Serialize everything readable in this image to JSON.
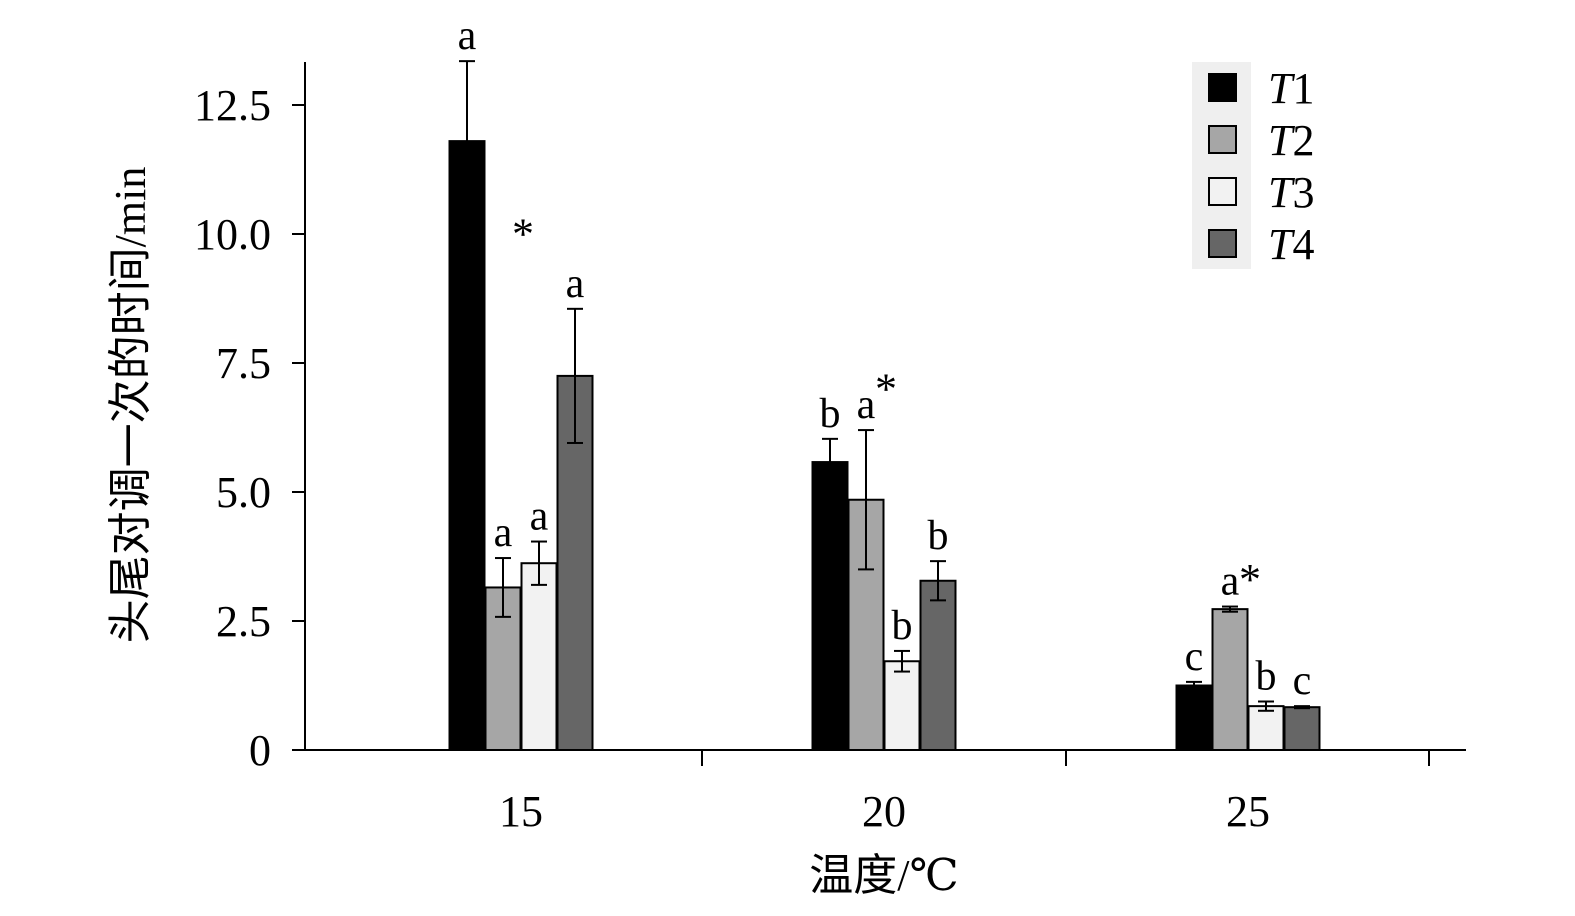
{
  "chart_data": {
    "type": "bar",
    "xlabel": "温度/℃",
    "ylabel": "头尾对调一次的时间/min",
    "categories": [
      "15",
      "20",
      "25"
    ],
    "ylim": [
      0,
      13.3
    ],
    "yticks": [
      {
        "value": 0,
        "label": "0"
      },
      {
        "value": 2.5,
        "label": "2.5"
      },
      {
        "value": 5.0,
        "label": "5.0"
      },
      {
        "value": 7.5,
        "label": "7.5"
      },
      {
        "value": 10.0,
        "label": "10.0"
      },
      {
        "value": 12.5,
        "label": "12.5"
      }
    ],
    "legend": {
      "position": "top-right"
    },
    "grid": false,
    "series": [
      {
        "name": "T1",
        "name_italic": "T",
        "name_rest": "1",
        "color": "#000000",
        "values": [
          11.8,
          5.58,
          1.25
        ],
        "errors": [
          1.55,
          0.45,
          0.07
        ],
        "labels": [
          "a",
          "b",
          "c"
        ]
      },
      {
        "name": "T2",
        "name_italic": "T",
        "name_rest": "2",
        "color": "#a6a6a6",
        "values": [
          3.15,
          4.85,
          2.73
        ],
        "errors": [
          0.57,
          1.35,
          0.05
        ],
        "labels": [
          "a",
          "a",
          "a"
        ]
      },
      {
        "name": "T3",
        "name_italic": "T",
        "name_rest": "3",
        "color": "#f2f2f2",
        "values": [
          3.62,
          1.72,
          0.85
        ],
        "errors": [
          0.42,
          0.2,
          0.09
        ],
        "labels": [
          "a",
          "b",
          "b"
        ]
      },
      {
        "name": "T4",
        "name_italic": "T",
        "name_rest": "4",
        "color": "#666666",
        "values": [
          7.25,
          3.28,
          0.83
        ],
        "errors": [
          1.3,
          0.38,
          0.02
        ],
        "labels": [
          "a",
          "b",
          "c"
        ]
      }
    ],
    "annotations": [
      {
        "text": "*",
        "category": "15",
        "value": 10.3
      },
      {
        "text": "*",
        "category": "20",
        "value": 7.3
      },
      {
        "text": "*",
        "category": "25",
        "value": 3.6
      }
    ]
  }
}
